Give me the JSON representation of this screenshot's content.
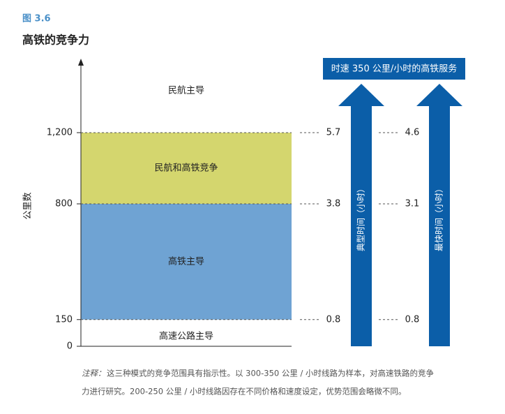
{
  "figure_label": "图 3.6",
  "chart_data": {
    "type": "bands",
    "title": "高铁的竞争力",
    "y_label": "公里数",
    "ylim": [
      0,
      1600
    ],
    "yticks": [
      0,
      150,
      800,
      {
        "value": 1200,
        "label": "1,200"
      }
    ],
    "bands": [
      {
        "name": "高速公路主导",
        "range": [
          0,
          150
        ],
        "color": "#ffffff"
      },
      {
        "name": "高铁主导",
        "range": [
          150,
          800
        ],
        "color": "#6fa3d3"
      },
      {
        "name": "民航和高铁竞争",
        "range": [
          800,
          1200
        ],
        "color": "#d4d66e"
      },
      {
        "name": "民航主导",
        "range": [
          1200,
          1600
        ],
        "color": "#ffffff"
      }
    ],
    "service": {
      "title": "时速 350 公里/小时的高铁服务",
      "color": "#0b5ea8",
      "at": [
        150,
        800,
        1200
      ],
      "series": [
        {
          "name": "典型时间（小时）",
          "values": [
            "0.8",
            "3.8",
            "5.7"
          ]
        },
        {
          "name": "最快时间（小时）",
          "values": [
            "0.8",
            "3.1",
            "4.6"
          ]
        }
      ]
    }
  },
  "note": {
    "label": "注释：",
    "lines": [
      "这三种模式的竞争范围具有指示性。以 300-350 公里 / 小时线路为样本，对高速铁路的竞争",
      "力进行研究。200-250 公里 / 小时线路因存在不同价格和速度设定，优势范围会略微不同。"
    ]
  }
}
